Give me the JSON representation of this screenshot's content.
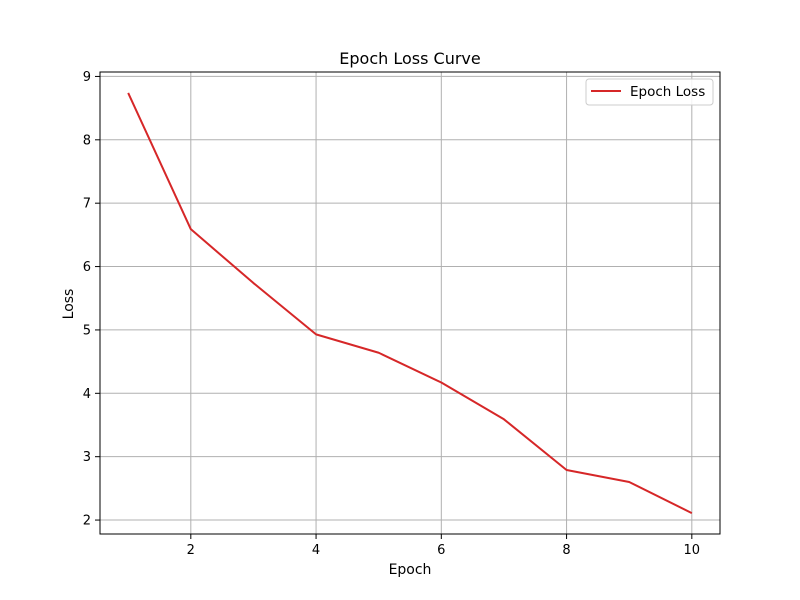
{
  "chart_data": {
    "type": "line",
    "title": "Epoch Loss Curve",
    "xlabel": "Epoch",
    "ylabel": "Loss",
    "xlim": [
      0.55,
      10.45
    ],
    "ylim": [
      1.78,
      9.07
    ],
    "xticks": [
      2,
      4,
      6,
      8,
      10
    ],
    "yticks": [
      2,
      3,
      4,
      5,
      6,
      7,
      8,
      9
    ],
    "grid": true,
    "legend_position": "top-right",
    "series": [
      {
        "name": "Epoch Loss",
        "color": "#d62728",
        "x": [
          1,
          2,
          3,
          4,
          5,
          6,
          7,
          8,
          9,
          10
        ],
        "y": [
          8.74,
          6.59,
          5.74,
          4.93,
          4.64,
          4.17,
          3.59,
          2.79,
          2.6,
          2.11
        ]
      }
    ]
  }
}
